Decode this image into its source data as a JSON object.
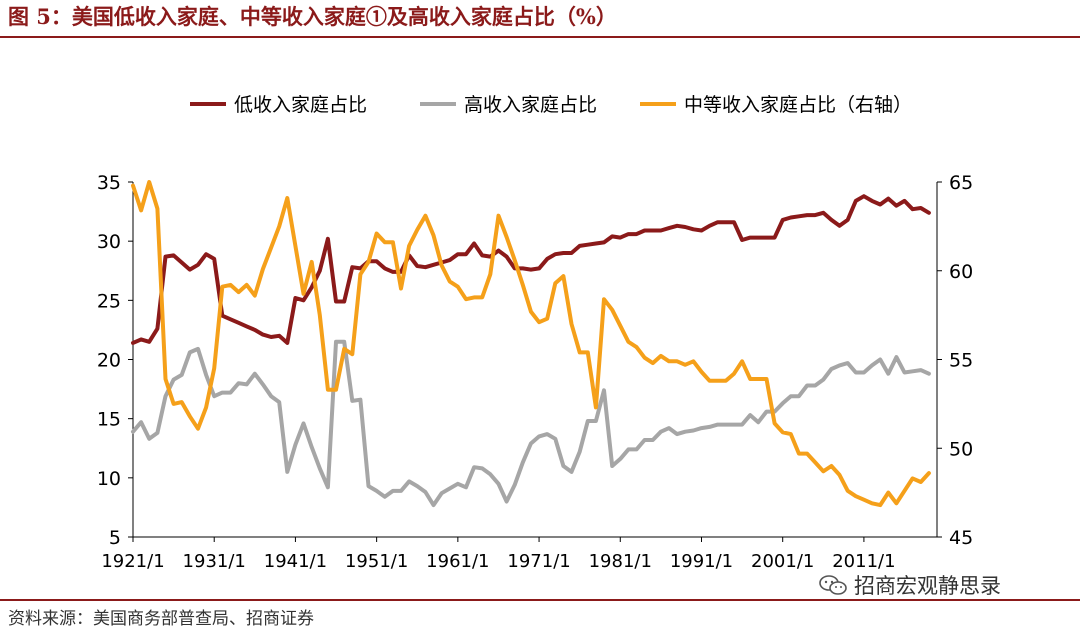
{
  "figure": {
    "title": "图 5：美国低收入家庭、中等收入家庭①及高收入家庭占比（%）",
    "source": "资料来源：美国商务部普查局、招商证券",
    "watermark": "招商宏观静思录",
    "watermark_icon": "wechat-icon"
  },
  "chart_data": {
    "type": "line",
    "x_ticks": [
      "1921/1",
      "1931/1",
      "1941/1",
      "1951/1",
      "1961/1",
      "1971/1",
      "1981/1",
      "1991/1",
      "2001/1",
      "2011/1"
    ],
    "xlim": [
      1921,
      2020
    ],
    "y_left": {
      "lim": [
        5,
        35
      ],
      "ticks": [
        5,
        10,
        15,
        20,
        25,
        30,
        35
      ]
    },
    "y_right": {
      "lim": [
        45,
        65
      ],
      "ticks": [
        45,
        50,
        55,
        60,
        65
      ]
    },
    "legend_position": "top",
    "colors": {
      "low": "#8b1a1a",
      "high": "#a6a6a6",
      "middle": "#f5a01a"
    },
    "series": [
      {
        "name": "低收入家庭占比",
        "axis": "left",
        "color": "#8b1a1a",
        "points": [
          [
            1921,
            21.4
          ],
          [
            1922,
            21.7
          ],
          [
            1923,
            21.5
          ],
          [
            1924,
            22.6
          ],
          [
            1925,
            28.7
          ],
          [
            1926,
            28.8
          ],
          [
            1927,
            28.2
          ],
          [
            1928,
            27.6
          ],
          [
            1929,
            28.0
          ],
          [
            1930,
            28.9
          ],
          [
            1931,
            28.5
          ],
          [
            1932,
            23.7
          ],
          [
            1933,
            23.4
          ],
          [
            1934,
            23.1
          ],
          [
            1935,
            22.8
          ],
          [
            1936,
            22.5
          ],
          [
            1937,
            22.1
          ],
          [
            1938,
            21.9
          ],
          [
            1939,
            22.0
          ],
          [
            1940,
            21.4
          ],
          [
            1941,
            25.2
          ],
          [
            1942,
            25.0
          ],
          [
            1943,
            26.1
          ],
          [
            1944,
            27.5
          ],
          [
            1945,
            30.2
          ],
          [
            1946,
            24.9
          ],
          [
            1947,
            24.9
          ],
          [
            1948,
            27.8
          ],
          [
            1949,
            27.7
          ],
          [
            1950,
            28.3
          ],
          [
            1951,
            28.3
          ],
          [
            1952,
            27.7
          ],
          [
            1953,
            27.4
          ],
          [
            1954,
            27.4
          ],
          [
            1955,
            28.8
          ],
          [
            1956,
            27.9
          ],
          [
            1957,
            27.8
          ],
          [
            1958,
            28.0
          ],
          [
            1959,
            28.2
          ],
          [
            1960,
            28.4
          ],
          [
            1961,
            28.9
          ],
          [
            1962,
            28.9
          ],
          [
            1963,
            29.8
          ],
          [
            1964,
            28.8
          ],
          [
            1965,
            28.7
          ],
          [
            1966,
            29.2
          ],
          [
            1967,
            28.7
          ],
          [
            1968,
            27.7
          ],
          [
            1969,
            27.7
          ],
          [
            1970,
            27.6
          ],
          [
            1971,
            27.7
          ],
          [
            1972,
            28.5
          ],
          [
            1973,
            28.9
          ],
          [
            1974,
            29.0
          ],
          [
            1975,
            29.0
          ],
          [
            1976,
            29.6
          ],
          [
            1977,
            29.7
          ],
          [
            1978,
            29.8
          ],
          [
            1979,
            29.9
          ],
          [
            1980,
            30.4
          ],
          [
            1981,
            30.3
          ],
          [
            1982,
            30.6
          ],
          [
            1983,
            30.6
          ],
          [
            1984,
            30.9
          ],
          [
            1985,
            30.9
          ],
          [
            1986,
            30.9
          ],
          [
            1987,
            31.1
          ],
          [
            1988,
            31.3
          ],
          [
            1989,
            31.2
          ],
          [
            1990,
            31.0
          ],
          [
            1991,
            30.9
          ],
          [
            1992,
            31.3
          ],
          [
            1993,
            31.6
          ],
          [
            1994,
            31.6
          ],
          [
            1995,
            31.6
          ],
          [
            1996,
            30.1
          ],
          [
            1997,
            30.3
          ],
          [
            1998,
            30.3
          ],
          [
            1999,
            30.3
          ],
          [
            2000,
            30.3
          ],
          [
            2001,
            31.8
          ],
          [
            2002,
            32.0
          ],
          [
            2003,
            32.1
          ],
          [
            2004,
            32.2
          ],
          [
            2005,
            32.2
          ],
          [
            2006,
            32.4
          ],
          [
            2007,
            31.8
          ],
          [
            2008,
            31.3
          ],
          [
            2009,
            31.8
          ],
          [
            2010,
            33.4
          ],
          [
            2011,
            33.8
          ],
          [
            2012,
            33.4
          ],
          [
            2013,
            33.1
          ],
          [
            2014,
            33.6
          ],
          [
            2015,
            33.0
          ],
          [
            2016,
            33.4
          ],
          [
            2017,
            32.7
          ],
          [
            2018,
            32.8
          ],
          [
            2019,
            32.4
          ]
        ]
      },
      {
        "name": "高收入家庭占比",
        "axis": "left",
        "color": "#a6a6a6",
        "points": [
          [
            1921,
            13.9
          ],
          [
            1922,
            14.7
          ],
          [
            1923,
            13.3
          ],
          [
            1924,
            13.8
          ],
          [
            1925,
            16.9
          ],
          [
            1926,
            18.3
          ],
          [
            1927,
            18.7
          ],
          [
            1928,
            20.6
          ],
          [
            1929,
            20.9
          ],
          [
            1930,
            18.7
          ],
          [
            1931,
            16.9
          ],
          [
            1932,
            17.2
          ],
          [
            1933,
            17.2
          ],
          [
            1934,
            18.0
          ],
          [
            1935,
            17.9
          ],
          [
            1936,
            18.8
          ],
          [
            1937,
            17.9
          ],
          [
            1938,
            16.9
          ],
          [
            1939,
            16.4
          ],
          [
            1940,
            10.5
          ],
          [
            1941,
            12.8
          ],
          [
            1942,
            14.6
          ],
          [
            1943,
            12.6
          ],
          [
            1944,
            10.8
          ],
          [
            1945,
            9.2
          ],
          [
            1946,
            21.5
          ],
          [
            1947,
            21.5
          ],
          [
            1948,
            16.5
          ],
          [
            1949,
            16.6
          ],
          [
            1950,
            9.3
          ],
          [
            1951,
            8.9
          ],
          [
            1952,
            8.4
          ],
          [
            1953,
            8.9
          ],
          [
            1954,
            8.9
          ],
          [
            1955,
            9.7
          ],
          [
            1956,
            9.3
          ],
          [
            1957,
            8.8
          ],
          [
            1958,
            7.7
          ],
          [
            1959,
            8.7
          ],
          [
            1960,
            9.1
          ],
          [
            1961,
            9.5
          ],
          [
            1962,
            9.2
          ],
          [
            1963,
            10.9
          ],
          [
            1964,
            10.8
          ],
          [
            1965,
            10.3
          ],
          [
            1966,
            9.5
          ],
          [
            1967,
            8.0
          ],
          [
            1968,
            9.4
          ],
          [
            1969,
            11.3
          ],
          [
            1970,
            12.9
          ],
          [
            1971,
            13.5
          ],
          [
            1972,
            13.7
          ],
          [
            1973,
            13.3
          ],
          [
            1974,
            11.0
          ],
          [
            1975,
            10.5
          ],
          [
            1976,
            12.2
          ],
          [
            1977,
            14.8
          ],
          [
            1978,
            14.8
          ],
          [
            1979,
            17.4
          ],
          [
            1980,
            11.0
          ],
          [
            1981,
            11.6
          ],
          [
            1982,
            12.4
          ],
          [
            1983,
            12.4
          ],
          [
            1984,
            13.2
          ],
          [
            1985,
            13.2
          ],
          [
            1986,
            13.9
          ],
          [
            1987,
            14.2
          ],
          [
            1988,
            13.7
          ],
          [
            1989,
            13.9
          ],
          [
            1990,
            14.0
          ],
          [
            1991,
            14.2
          ],
          [
            1992,
            14.3
          ],
          [
            1993,
            14.5
          ],
          [
            1994,
            14.5
          ],
          [
            1995,
            14.5
          ],
          [
            1996,
            14.5
          ],
          [
            1997,
            15.3
          ],
          [
            1998,
            14.7
          ],
          [
            1999,
            15.6
          ],
          [
            2000,
            15.6
          ],
          [
            2001,
            16.3
          ],
          [
            2002,
            16.9
          ],
          [
            2003,
            16.9
          ],
          [
            2004,
            17.8
          ],
          [
            2005,
            17.8
          ],
          [
            2006,
            18.3
          ],
          [
            2007,
            19.2
          ],
          [
            2008,
            19.5
          ],
          [
            2009,
            19.7
          ],
          [
            2010,
            18.9
          ],
          [
            2011,
            18.9
          ],
          [
            2012,
            19.5
          ],
          [
            2013,
            20.0
          ],
          [
            2014,
            18.8
          ],
          [
            2015,
            20.2
          ],
          [
            2016,
            18.9
          ],
          [
            2017,
            19.0
          ],
          [
            2018,
            19.1
          ],
          [
            2019,
            18.8
          ]
        ]
      },
      {
        "name": "中等收入家庭占比（右轴）",
        "axis": "right",
        "color": "#f5a01a",
        "points": [
          [
            1921,
            64.8
          ],
          [
            1922,
            63.4
          ],
          [
            1923,
            65.0
          ],
          [
            1924,
            63.5
          ],
          [
            1925,
            53.9
          ],
          [
            1926,
            52.5
          ],
          [
            1927,
            52.6
          ],
          [
            1928,
            51.8
          ],
          [
            1929,
            51.1
          ],
          [
            1930,
            52.3
          ],
          [
            1931,
            54.5
          ],
          [
            1932,
            59.1
          ],
          [
            1933,
            59.2
          ],
          [
            1934,
            58.8
          ],
          [
            1935,
            59.2
          ],
          [
            1936,
            58.6
          ],
          [
            1937,
            60.1
          ],
          [
            1938,
            61.3
          ],
          [
            1939,
            62.5
          ],
          [
            1940,
            64.1
          ],
          [
            1941,
            61.4
          ],
          [
            1942,
            58.7
          ],
          [
            1943,
            60.5
          ],
          [
            1944,
            57.5
          ],
          [
            1945,
            53.3
          ],
          [
            1946,
            53.3
          ],
          [
            1947,
            55.6
          ],
          [
            1948,
            55.3
          ],
          [
            1949,
            59.8
          ],
          [
            1950,
            60.5
          ],
          [
            1951,
            62.1
          ],
          [
            1952,
            61.6
          ],
          [
            1953,
            61.6
          ],
          [
            1954,
            59.0
          ],
          [
            1955,
            61.4
          ],
          [
            1956,
            62.3
          ],
          [
            1957,
            63.1
          ],
          [
            1958,
            62.0
          ],
          [
            1959,
            60.3
          ],
          [
            1960,
            59.4
          ],
          [
            1961,
            59.1
          ],
          [
            1962,
            58.4
          ],
          [
            1963,
            58.5
          ],
          [
            1964,
            58.5
          ],
          [
            1965,
            59.8
          ],
          [
            1966,
            63.1
          ],
          [
            1967,
            61.9
          ],
          [
            1968,
            60.6
          ],
          [
            1969,
            59.2
          ],
          [
            1970,
            57.7
          ],
          [
            1971,
            57.1
          ],
          [
            1972,
            57.3
          ],
          [
            1973,
            59.3
          ],
          [
            1974,
            59.7
          ],
          [
            1975,
            57.0
          ],
          [
            1976,
            55.4
          ],
          [
            1977,
            55.4
          ],
          [
            1978,
            52.3
          ],
          [
            1979,
            58.4
          ],
          [
            1980,
            57.8
          ],
          [
            1981,
            56.9
          ],
          [
            1982,
            56.0
          ],
          [
            1983,
            55.7
          ],
          [
            1984,
            55.1
          ],
          [
            1985,
            54.8
          ],
          [
            1986,
            55.2
          ],
          [
            1987,
            54.9
          ],
          [
            1988,
            54.9
          ],
          [
            1989,
            54.7
          ],
          [
            1990,
            54.9
          ],
          [
            1991,
            54.3
          ],
          [
            1992,
            53.8
          ],
          [
            1993,
            53.8
          ],
          [
            1994,
            53.8
          ],
          [
            1995,
            54.2
          ],
          [
            1996,
            54.9
          ],
          [
            1997,
            53.9
          ],
          [
            1998,
            53.9
          ],
          [
            1999,
            53.9
          ],
          [
            2000,
            51.4
          ],
          [
            2001,
            50.9
          ],
          [
            2002,
            50.8
          ],
          [
            2003,
            49.7
          ],
          [
            2004,
            49.7
          ],
          [
            2005,
            49.2
          ],
          [
            2006,
            48.7
          ],
          [
            2007,
            49.0
          ],
          [
            2008,
            48.5
          ],
          [
            2009,
            47.6
          ],
          [
            2010,
            47.3
          ],
          [
            2011,
            47.1
          ],
          [
            2012,
            46.9
          ],
          [
            2013,
            46.8
          ],
          [
            2014,
            47.5
          ],
          [
            2015,
            46.9
          ],
          [
            2016,
            47.6
          ],
          [
            2017,
            48.3
          ],
          [
            2018,
            48.1
          ],
          [
            2019,
            48.6
          ]
        ]
      }
    ]
  }
}
